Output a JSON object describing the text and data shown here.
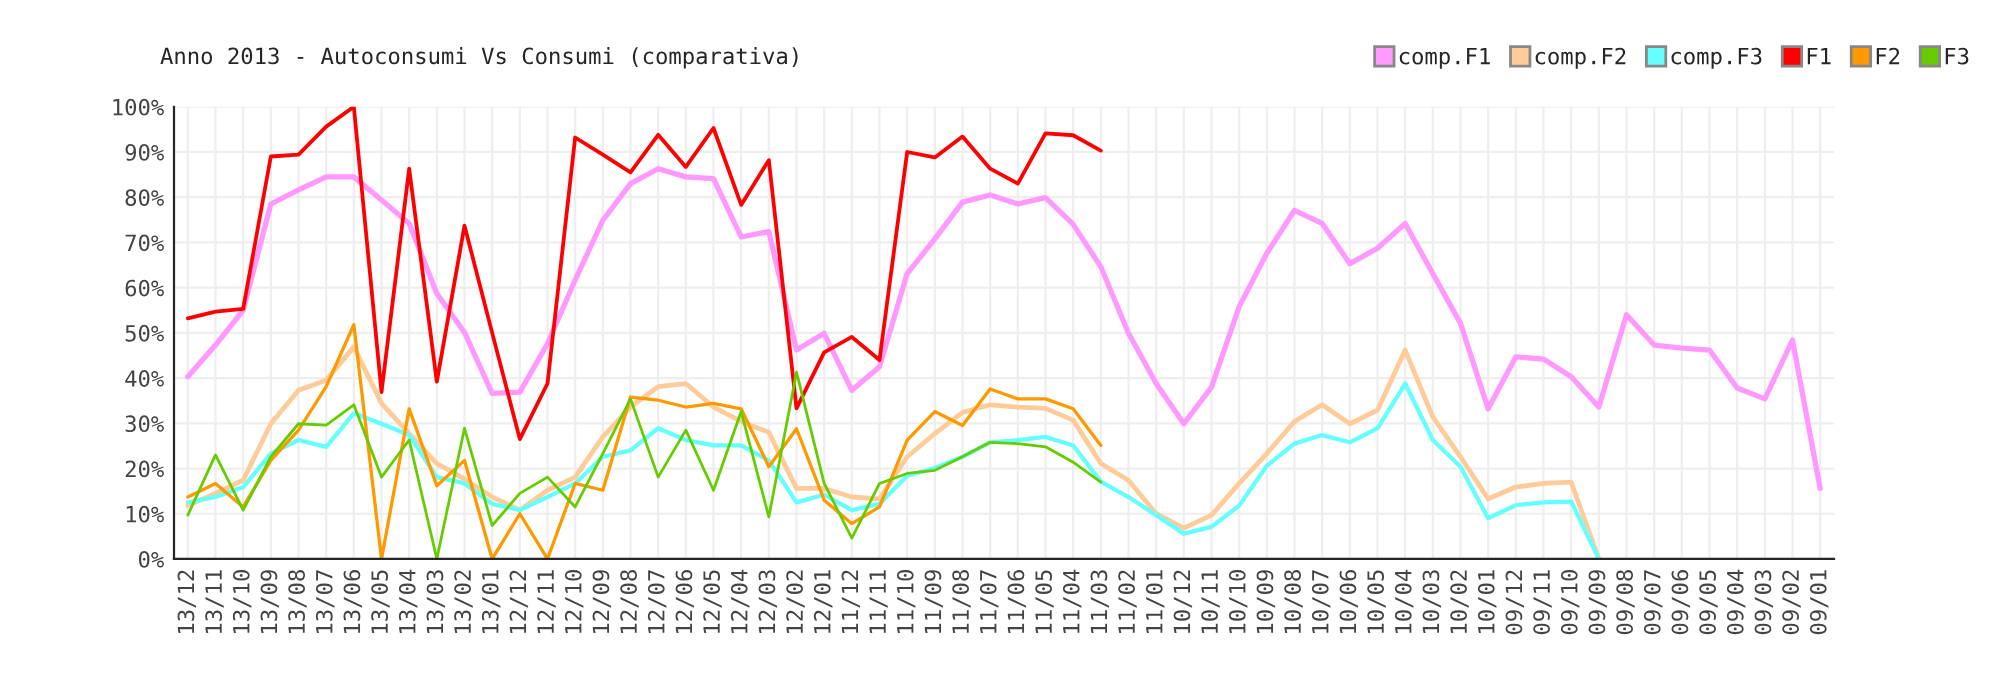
{
  "chart_data": {
    "type": "line",
    "title": "Anno 2013 - Autoconsumi Vs Consumi (comparativa)",
    "categories": [
      "13/12",
      "13/11",
      "13/10",
      "13/09",
      "13/08",
      "13/07",
      "13/06",
      "13/05",
      "13/04",
      "13/03",
      "13/02",
      "13/01",
      "12/12",
      "12/11",
      "12/10",
      "12/09",
      "12/08",
      "12/07",
      "12/06",
      "12/05",
      "12/04",
      "12/03",
      "12/02",
      "12/01",
      "11/12",
      "11/11",
      "11/10",
      "11/09",
      "11/08",
      "11/07",
      "11/06",
      "11/05",
      "11/04",
      "11/03",
      "11/02",
      "11/01",
      "10/12",
      "10/11",
      "10/10",
      "10/09",
      "10/08",
      "10/07",
      "10/06",
      "10/05",
      "10/04",
      "10/03",
      "10/02",
      "10/01",
      "09/12",
      "09/11",
      "09/10",
      "09/09",
      "09/08",
      "09/07",
      "09/06",
      "09/05",
      "09/04",
      "09/03",
      "09/02",
      "09/01"
    ],
    "series": [
      {
        "name": "comp.F1",
        "color": "#ff99ff",
        "values": [
          40.3,
          47.3,
          55,
          78.5,
          81.6,
          84.5,
          84.5,
          79.4,
          74.2,
          58.7,
          50.1,
          36.6,
          36.9,
          47.6,
          61.7,
          74.9,
          83,
          86.3,
          84.5,
          84.1,
          71.2,
          72.4,
          46.2,
          49.9,
          37.3,
          42.5,
          63.1,
          70.8,
          78.9,
          80.5,
          78.5,
          79.9,
          74,
          64.6,
          49.9,
          38.8,
          29.9,
          38,
          55.8,
          67.6,
          77.1,
          74.2,
          65.3,
          68.7,
          74.2,
          63.1,
          52.1,
          33.2,
          44.7,
          44.2,
          40.3,
          33.6,
          54,
          47.3,
          46.6,
          46.2,
          37.8,
          35.4,
          48.4,
          15.6
        ]
      },
      {
        "name": "comp.F2",
        "color": "#ffcc99",
        "values": [
          11.8,
          14.5,
          17.4,
          29.9,
          37.3,
          39.5,
          46.9,
          34.4,
          27.7,
          21.1,
          17.7,
          13.7,
          10.8,
          15.2,
          18.1,
          27,
          33.6,
          38.1,
          38.8,
          33.6,
          30.4,
          28,
          15.6,
          15.6,
          13.7,
          13.3,
          22.6,
          27.7,
          32.4,
          34.1,
          33.6,
          33.3,
          30.7,
          21.1,
          17.4,
          10,
          6.8,
          9.7,
          16.7,
          23.3,
          30.4,
          34.1,
          29.9,
          32.9,
          46.2,
          31.4,
          22.6,
          13.3,
          15.9,
          16.7,
          17,
          0,
          null,
          null,
          null,
          null,
          null,
          null,
          null,
          null
        ]
      },
      {
        "name": "comp.F3",
        "color": "#66ffff",
        "values": [
          12.5,
          13.7,
          15.9,
          23.3,
          26.3,
          24.8,
          32.2,
          29.9,
          27.4,
          18.1,
          16.7,
          12.2,
          10.8,
          13.7,
          16.7,
          22.6,
          24,
          28.9,
          26.3,
          25.1,
          25.1,
          21.8,
          12.5,
          14.2,
          10.8,
          12.2,
          18.4,
          20.1,
          22.6,
          25.8,
          26.3,
          27,
          25.1,
          17.1,
          13.7,
          9.7,
          5.6,
          7.1,
          11.8,
          20.6,
          25.5,
          27.4,
          25.8,
          28.9,
          38.8,
          26.3,
          20.4,
          9,
          11.9,
          12.5,
          12.7,
          0,
          null,
          null,
          null,
          null,
          null,
          null,
          null,
          null
        ]
      },
      {
        "name": "F1",
        "color": "#ff0000",
        "values": [
          53.2,
          54.7,
          55.3,
          89,
          89.4,
          95.6,
          100,
          36.9,
          86.3,
          39.2,
          73.7,
          50,
          26.5,
          38.8,
          93.2,
          89.4,
          85.5,
          93.8,
          86.7,
          95.3,
          78.3,
          88.2,
          33.3,
          45.7,
          49.1,
          44,
          90,
          88.8,
          93.4,
          86.3,
          83,
          94.1,
          93.7,
          90.3,
          null,
          null,
          null,
          null,
          null,
          null,
          null,
          null,
          null,
          null,
          null,
          null,
          null,
          null,
          null,
          null,
          null,
          null,
          null,
          null,
          null,
          null,
          null,
          null,
          null,
          null
        ]
      },
      {
        "name": "F2",
        "color": "#ff9900",
        "values": [
          13.7,
          16.7,
          11.5,
          21.8,
          28.5,
          38.1,
          51.8,
          0,
          33.2,
          16.2,
          21.8,
          0,
          10,
          0,
          16.7,
          15.2,
          35.8,
          35.1,
          33.6,
          34.4,
          33.2,
          20.4,
          28.8,
          13,
          7.8,
          11.5,
          26.3,
          32.6,
          29.5,
          37.6,
          35.4,
          35.4,
          33.2,
          25.1,
          null,
          null,
          null,
          null,
          null,
          null,
          null,
          null,
          null,
          null,
          null,
          null,
          null,
          null,
          null,
          null,
          null,
          null,
          null,
          null,
          null,
          null,
          null,
          null,
          null,
          null
        ]
      },
      {
        "name": "F3",
        "color": "#66cc00",
        "values": [
          9.7,
          23,
          10.8,
          22.6,
          29.9,
          29.6,
          34.1,
          18.1,
          26.3,
          0,
          28.9,
          7.4,
          14.5,
          18.1,
          11.5,
          23.3,
          35.4,
          18.1,
          28.5,
          15.2,
          32.6,
          9.3,
          41.3,
          16.7,
          4.6,
          16.7,
          18.9,
          19.6,
          22.6,
          25.8,
          25.5,
          24.8,
          21.4,
          17,
          null,
          null,
          null,
          null,
          null,
          null,
          null,
          null,
          null,
          null,
          null,
          null,
          null,
          null,
          null,
          null,
          null,
          null,
          null,
          null,
          null,
          null,
          null,
          null,
          null,
          null
        ]
      }
    ],
    "ylim": [
      0,
      100
    ],
    "yticks": [
      {
        "value": 0,
        "label": "0%"
      },
      {
        "value": 10,
        "label": "10%"
      },
      {
        "value": 20,
        "label": "20%"
      },
      {
        "value": 30,
        "label": "30%"
      },
      {
        "value": 40,
        "label": "40%"
      },
      {
        "value": 50,
        "label": "50%"
      },
      {
        "value": 60,
        "label": "60%"
      },
      {
        "value": 70,
        "label": "70%"
      },
      {
        "value": 80,
        "label": "80%"
      },
      {
        "value": 90,
        "label": "90%"
      },
      {
        "value": 100,
        "label": "100%"
      }
    ],
    "grid": true,
    "legend": "top right",
    "marker": "none",
    "line_style": "solid"
  }
}
